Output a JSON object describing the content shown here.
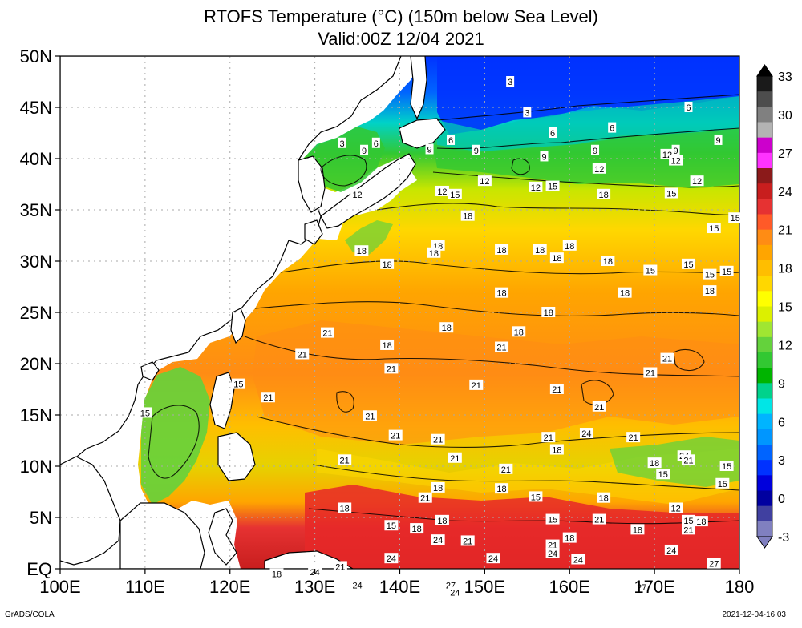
{
  "title": "RTOFS Temperature (°C) (150m below Sea Level)",
  "subtitle": "Valid:00Z 12/04 2021",
  "credit": "GrADS/COLA",
  "timestamp": "2021-12-04-16:03",
  "lon_ticks": [
    "100E",
    "110E",
    "120E",
    "130E",
    "140E",
    "150E",
    "160E",
    "170E",
    "180"
  ],
  "lat_ticks": [
    "50N",
    "45N",
    "40N",
    "35N",
    "30N",
    "25N",
    "20N",
    "15N",
    "10N",
    "5N",
    "EQ"
  ],
  "colorbar": {
    "labels": [
      "33",
      "30",
      "27",
      "24",
      "21",
      "18",
      "15",
      "12",
      "9",
      "6",
      "3",
      "0",
      "-3"
    ],
    "colors": [
      "#1a1a1a",
      "#4d4d4d",
      "#808080",
      "#b3b3b3",
      "#cc00cc",
      "#ff33ff",
      "#8b1a1a",
      "#c81e1e",
      "#e63232",
      "#ff5a28",
      "#ff8c14",
      "#ffa500",
      "#ffbe00",
      "#ffd700",
      "#ffff00",
      "#dcf000",
      "#a0e632",
      "#64d23c",
      "#32c832",
      "#00b400",
      "#00d28c",
      "#00e6e6",
      "#00b4ff",
      "#0096ff",
      "#0064ff",
      "#0032ff",
      "#0000dc",
      "#0000a0",
      "#4040a0",
      "#8080c0"
    ]
  },
  "contour_labels": [
    {
      "t": "3",
      "lon": 153.0,
      "lat": 47.5
    },
    {
      "t": "3",
      "lon": 155.0,
      "lat": 44.5
    },
    {
      "t": "6",
      "lon": 174.0,
      "lat": 45.0
    },
    {
      "t": "6",
      "lon": 165.0,
      "lat": 43.0
    },
    {
      "t": "6",
      "lon": 158.0,
      "lat": 42.5
    },
    {
      "t": "9",
      "lon": 177.5,
      "lat": 41.8
    },
    {
      "t": "6",
      "lon": 146.0,
      "lat": 41.8
    },
    {
      "t": "9",
      "lon": 143.5,
      "lat": 40.9
    },
    {
      "t": "9",
      "lon": 149.0,
      "lat": 40.8
    },
    {
      "t": "9",
      "lon": 157.0,
      "lat": 40.2
    },
    {
      "t": "9",
      "lon": 163.0,
      "lat": 40.8
    },
    {
      "t": "12",
      "lon": 171.5,
      "lat": 40.4
    },
    {
      "t": "9",
      "lon": 172.5,
      "lat": 40.8
    },
    {
      "t": "12",
      "lon": 172.5,
      "lat": 39.8
    },
    {
      "t": "12",
      "lon": 163.5,
      "lat": 39.0
    },
    {
      "t": "12",
      "lon": 150.0,
      "lat": 37.8
    },
    {
      "t": "12",
      "lon": 156.0,
      "lat": 37.2
    },
    {
      "t": "15",
      "lon": 158.0,
      "lat": 37.3
    },
    {
      "t": "12",
      "lon": 145.0,
      "lat": 36.8
    },
    {
      "t": "15",
      "lon": 146.5,
      "lat": 36.5
    },
    {
      "t": "12",
      "lon": 175.0,
      "lat": 37.8
    },
    {
      "t": "15",
      "lon": 172.0,
      "lat": 36.6
    },
    {
      "t": "18",
      "lon": 164.0,
      "lat": 36.5
    },
    {
      "t": "18",
      "lon": 148.0,
      "lat": 34.4
    },
    {
      "t": "15",
      "lon": 177.0,
      "lat": 33.2
    },
    {
      "t": "15",
      "lon": 179.5,
      "lat": 34.2
    },
    {
      "t": "3",
      "lon": 133.2,
      "lat": 41.5
    },
    {
      "t": "9",
      "lon": 135.8,
      "lat": 40.8
    },
    {
      "t": "6",
      "lon": 137.2,
      "lat": 41.5
    },
    {
      "t": "12",
      "lon": 135.0,
      "lat": 36.5
    },
    {
      "t": "18",
      "lon": 160.0,
      "lat": 31.5
    },
    {
      "t": "18",
      "lon": 144.5,
      "lat": 31.5
    },
    {
      "t": "18",
      "lon": 144.0,
      "lat": 30.8
    },
    {
      "t": "18",
      "lon": 152.0,
      "lat": 31.1
    },
    {
      "t": "18",
      "lon": 156.5,
      "lat": 31.1
    },
    {
      "t": "18",
      "lon": 158.5,
      "lat": 30.3
    },
    {
      "t": "18",
      "lon": 164.5,
      "lat": 30.0
    },
    {
      "t": "18",
      "lon": 135.5,
      "lat": 31.0
    },
    {
      "t": "18",
      "lon": 138.5,
      "lat": 29.7
    },
    {
      "t": "15",
      "lon": 169.5,
      "lat": 29.1
    },
    {
      "t": "15",
      "lon": 174.0,
      "lat": 29.7
    },
    {
      "t": "15",
      "lon": 176.5,
      "lat": 28.7
    },
    {
      "t": "15",
      "lon": 178.5,
      "lat": 29.0
    },
    {
      "t": "18",
      "lon": 152.0,
      "lat": 26.9
    },
    {
      "t": "18",
      "lon": 166.5,
      "lat": 26.9
    },
    {
      "t": "18",
      "lon": 176.5,
      "lat": 27.1
    },
    {
      "t": "18",
      "lon": 157.5,
      "lat": 25.0
    },
    {
      "t": "18",
      "lon": 145.5,
      "lat": 23.5
    },
    {
      "t": "18",
      "lon": 154.0,
      "lat": 23.1
    },
    {
      "t": "21",
      "lon": 131.5,
      "lat": 23.0
    },
    {
      "t": "21",
      "lon": 152.0,
      "lat": 21.6
    },
    {
      "t": "18",
      "lon": 138.5,
      "lat": 21.8
    },
    {
      "t": "21",
      "lon": 128.5,
      "lat": 20.9
    },
    {
      "t": "21",
      "lon": 171.5,
      "lat": 20.5
    },
    {
      "t": "21",
      "lon": 139.0,
      "lat": 19.5
    },
    {
      "t": "21",
      "lon": 169.5,
      "lat": 19.1
    },
    {
      "t": "21",
      "lon": 149.0,
      "lat": 17.9
    },
    {
      "t": "21",
      "lon": 158.5,
      "lat": 17.5
    },
    {
      "t": "15",
      "lon": 121.0,
      "lat": 18.0
    },
    {
      "t": "21",
      "lon": 124.5,
      "lat": 16.7
    },
    {
      "t": "21",
      "lon": 163.5,
      "lat": 15.8
    },
    {
      "t": "15",
      "lon": 110.0,
      "lat": 15.2
    },
    {
      "t": "21",
      "lon": 136.5,
      "lat": 14.9
    },
    {
      "t": "24",
      "lon": 162.0,
      "lat": 13.2
    },
    {
      "t": "21",
      "lon": 139.5,
      "lat": 13.0
    },
    {
      "t": "21",
      "lon": 157.5,
      "lat": 12.8
    },
    {
      "t": "21",
      "lon": 144.5,
      "lat": 12.6
    },
    {
      "t": "21",
      "lon": 167.5,
      "lat": 12.8
    },
    {
      "t": "18",
      "lon": 158.5,
      "lat": 11.6
    },
    {
      "t": "24",
      "lon": 173.5,
      "lat": 11.0
    },
    {
      "t": "21",
      "lon": 174.0,
      "lat": 10.6
    },
    {
      "t": "21",
      "lon": 133.5,
      "lat": 10.6
    },
    {
      "t": "21",
      "lon": 146.5,
      "lat": 10.8
    },
    {
      "t": "18",
      "lon": 170.0,
      "lat": 10.3
    },
    {
      "t": "15",
      "lon": 178.5,
      "lat": 10.0
    },
    {
      "t": "21",
      "lon": 152.5,
      "lat": 9.7
    },
    {
      "t": "15",
      "lon": 171.0,
      "lat": 9.2
    },
    {
      "t": "15",
      "lon": 178.0,
      "lat": 8.3
    },
    {
      "t": "18",
      "lon": 144.5,
      "lat": 7.9
    },
    {
      "t": "18",
      "lon": 152.0,
      "lat": 7.8
    },
    {
      "t": "15",
      "lon": 156.0,
      "lat": 7.0
    },
    {
      "t": "21",
      "lon": 143.0,
      "lat": 6.9
    },
    {
      "t": "18",
      "lon": 164.0,
      "lat": 6.9
    },
    {
      "t": "18",
      "lon": 133.5,
      "lat": 5.9
    },
    {
      "t": "12",
      "lon": 172.5,
      "lat": 5.9
    },
    {
      "t": "21",
      "lon": 163.5,
      "lat": 4.8
    },
    {
      "t": "18",
      "lon": 145.0,
      "lat": 4.7
    },
    {
      "t": "15",
      "lon": 158.0,
      "lat": 4.8
    },
    {
      "t": "15",
      "lon": 174.0,
      "lat": 4.7
    },
    {
      "t": "18",
      "lon": 175.5,
      "lat": 4.6
    },
    {
      "t": "15",
      "lon": 139.0,
      "lat": 4.2
    },
    {
      "t": "18",
      "lon": 142.0,
      "lat": 3.9
    },
    {
      "t": "21",
      "lon": 174.0,
      "lat": 3.8
    },
    {
      "t": "18",
      "lon": 168.0,
      "lat": 3.8
    },
    {
      "t": "24",
      "lon": 144.5,
      "lat": 2.8
    },
    {
      "t": "21",
      "lon": 148.0,
      "lat": 2.7
    },
    {
      "t": "18",
      "lon": 160.0,
      "lat": 3.0
    },
    {
      "t": "21",
      "lon": 158.0,
      "lat": 2.3
    },
    {
      "t": "24",
      "lon": 158.0,
      "lat": 1.5
    },
    {
      "t": "24",
      "lon": 139.0,
      "lat": 1.0
    },
    {
      "t": "24",
      "lon": 151.0,
      "lat": 1.0
    },
    {
      "t": "24",
      "lon": 161.0,
      "lat": 0.9
    },
    {
      "t": "24",
      "lon": 172.0,
      "lat": 1.8
    },
    {
      "t": "27",
      "lon": 177.0,
      "lat": 0.5
    },
    {
      "t": "21",
      "lon": 133.0,
      "lat": 0.2
    },
    {
      "t": "24",
      "lon": 130.0,
      "lat": -0.3
    },
    {
      "t": "18",
      "lon": 125.5,
      "lat": -0.5
    },
    {
      "t": "24",
      "lon": 135.0,
      "lat": -1.6
    },
    {
      "t": "27",
      "lon": 146.0,
      "lat": -1.6
    },
    {
      "t": "24",
      "lon": 146.5,
      "lat": -2.3
    },
    {
      "t": "27",
      "lon": 168.5,
      "lat": -1.8
    }
  ]
}
